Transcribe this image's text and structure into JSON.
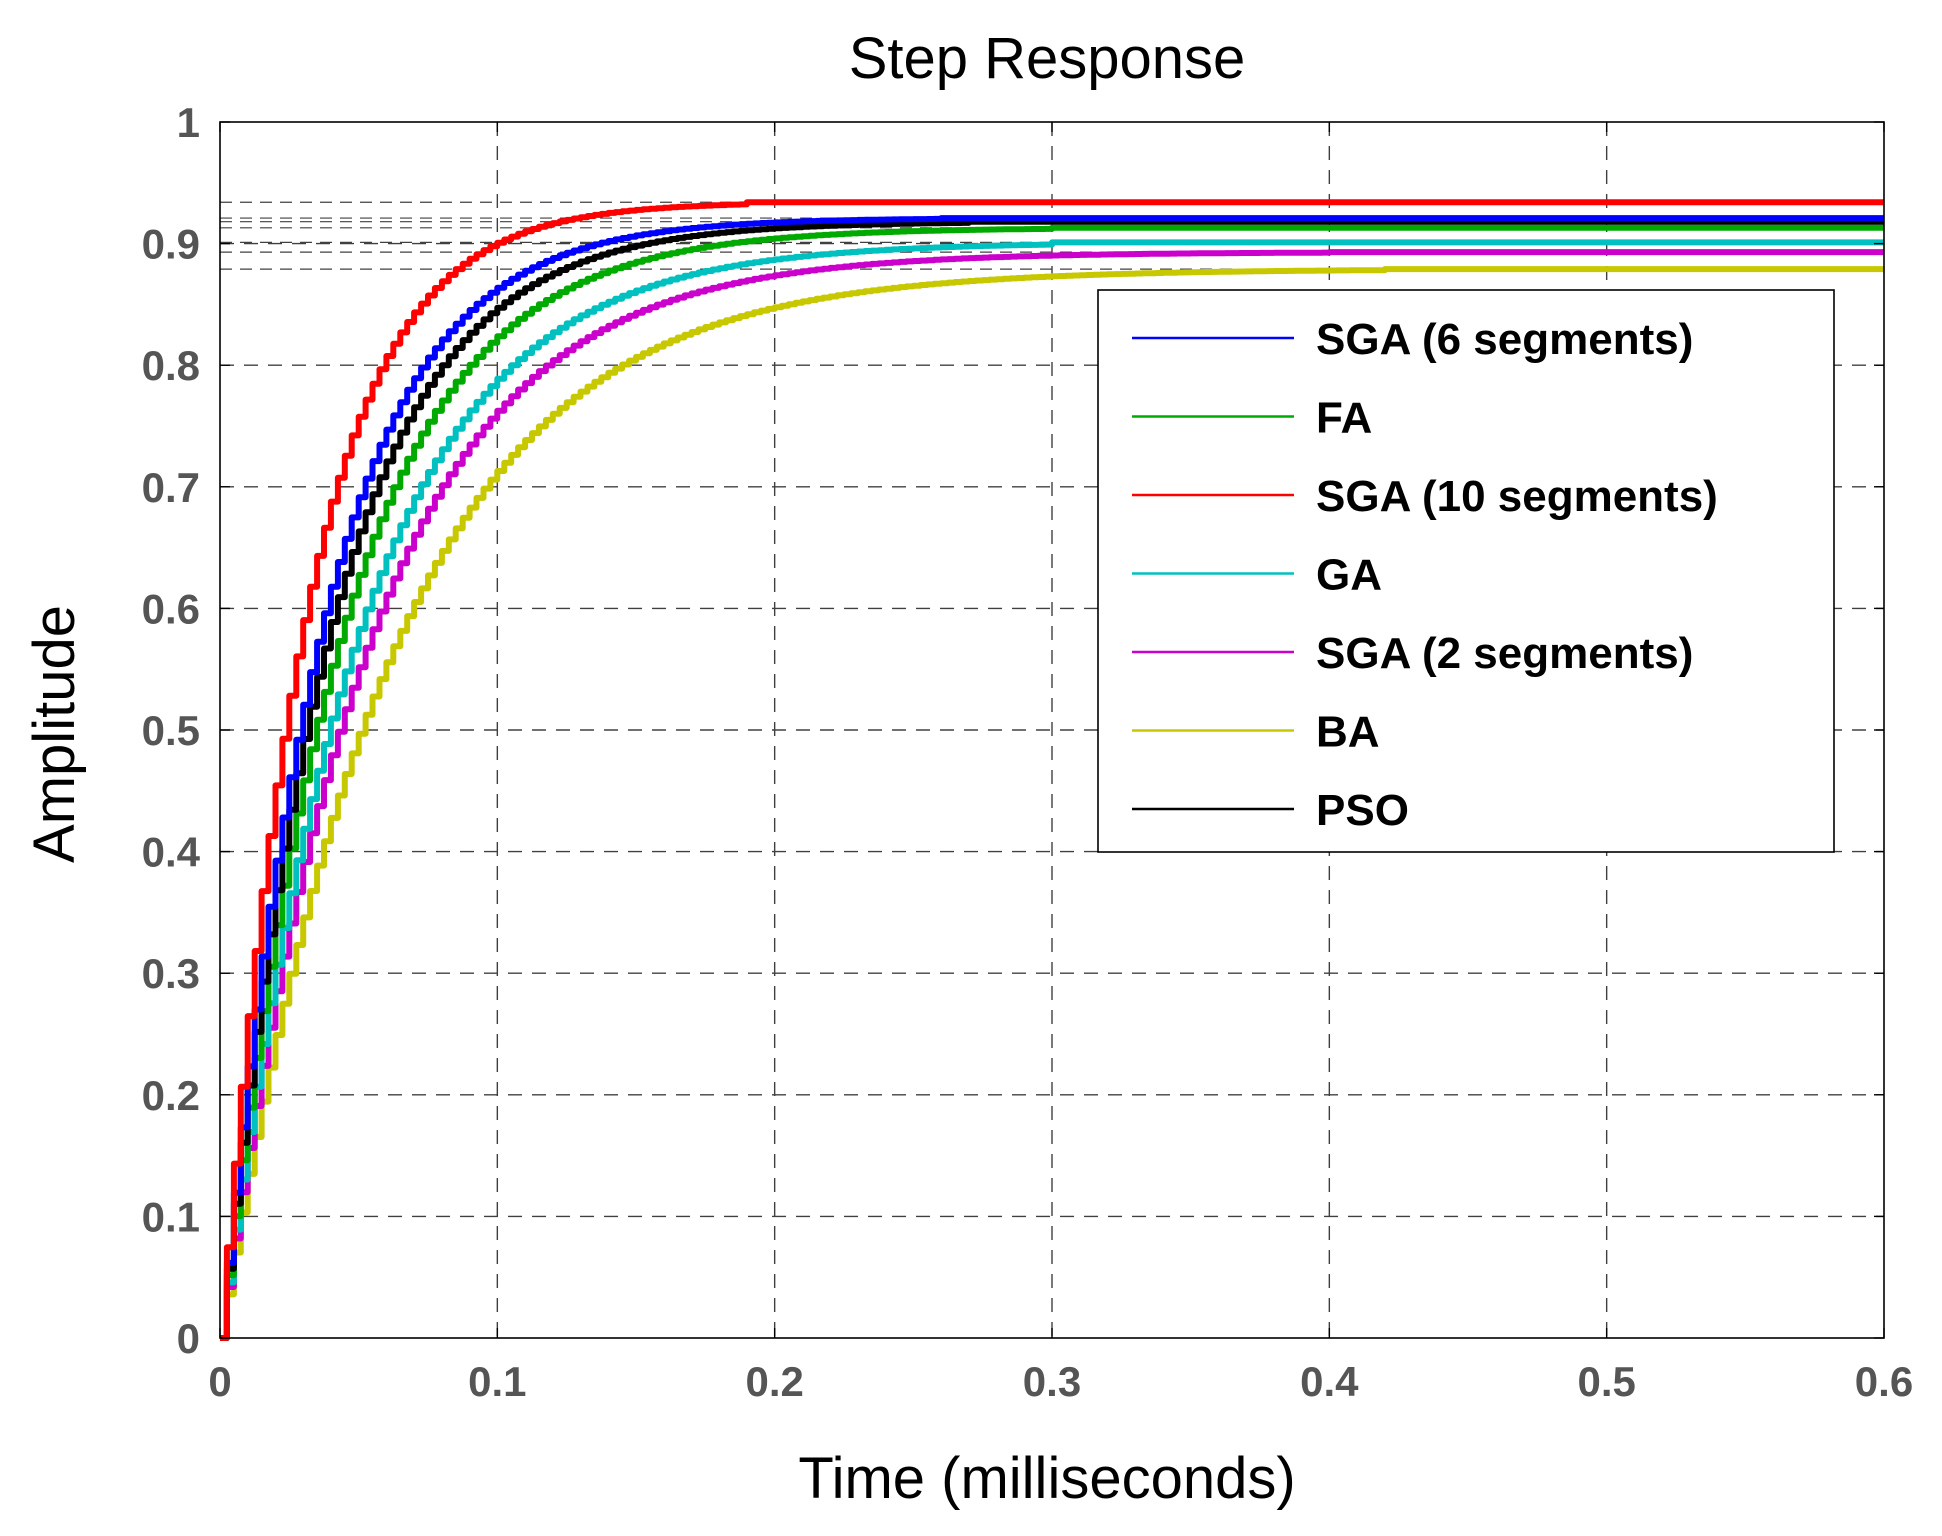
{
  "chart_data": {
    "type": "line",
    "title": "Step Response",
    "xlabel": "Time (milliseconds)",
    "ylabel": "Amplitude",
    "xlim": [
      0,
      0.6
    ],
    "ylim": [
      0,
      1
    ],
    "xticks": [
      0,
      0.1,
      0.2,
      0.3,
      0.4,
      0.5,
      0.6
    ],
    "xtick_labels": [
      "0",
      "0.1",
      "0.2",
      "0.3",
      "0.4",
      "0.5",
      "0.6"
    ],
    "yticks": [
      0,
      0.1,
      0.2,
      0.3,
      0.4,
      0.5,
      0.6,
      0.7,
      0.8,
      0.9,
      1
    ],
    "ytick_labels": [
      "0",
      "0.1",
      "0.2",
      "0.3",
      "0.4",
      "0.5",
      "0.6",
      "0.7",
      "0.8",
      "0.9",
      "1"
    ],
    "grid": true,
    "legend_position": "top-right",
    "series": [
      {
        "name": "SGA (6 segments)",
        "color": "#0000ff",
        "final_value": 0.921,
        "time_constant": 0.036,
        "settle_time": 0.26
      },
      {
        "name": "FA",
        "color": "#00aa00",
        "final_value": 0.913,
        "time_constant": 0.043,
        "settle_time": 0.3
      },
      {
        "name": "SGA (10 segments)",
        "color": "#ff0000",
        "final_value": 0.934,
        "time_constant": 0.03,
        "settle_time": 0.19
      },
      {
        "name": "GA",
        "color": "#00c0c0",
        "final_value": 0.901,
        "time_constant": 0.048,
        "settle_time": 0.3
      },
      {
        "name": "SGA (2 segments)",
        "color": "#cc00cc",
        "final_value": 0.893,
        "time_constant": 0.052,
        "settle_time": 0.4
      },
      {
        "name": "BA",
        "color": "#c8c800",
        "final_value": 0.879,
        "time_constant": 0.06,
        "settle_time": 0.42
      },
      {
        "name": "PSO",
        "color": "#000000",
        "final_value": 0.918,
        "time_constant": 0.039,
        "settle_time": 0.27
      }
    ]
  }
}
